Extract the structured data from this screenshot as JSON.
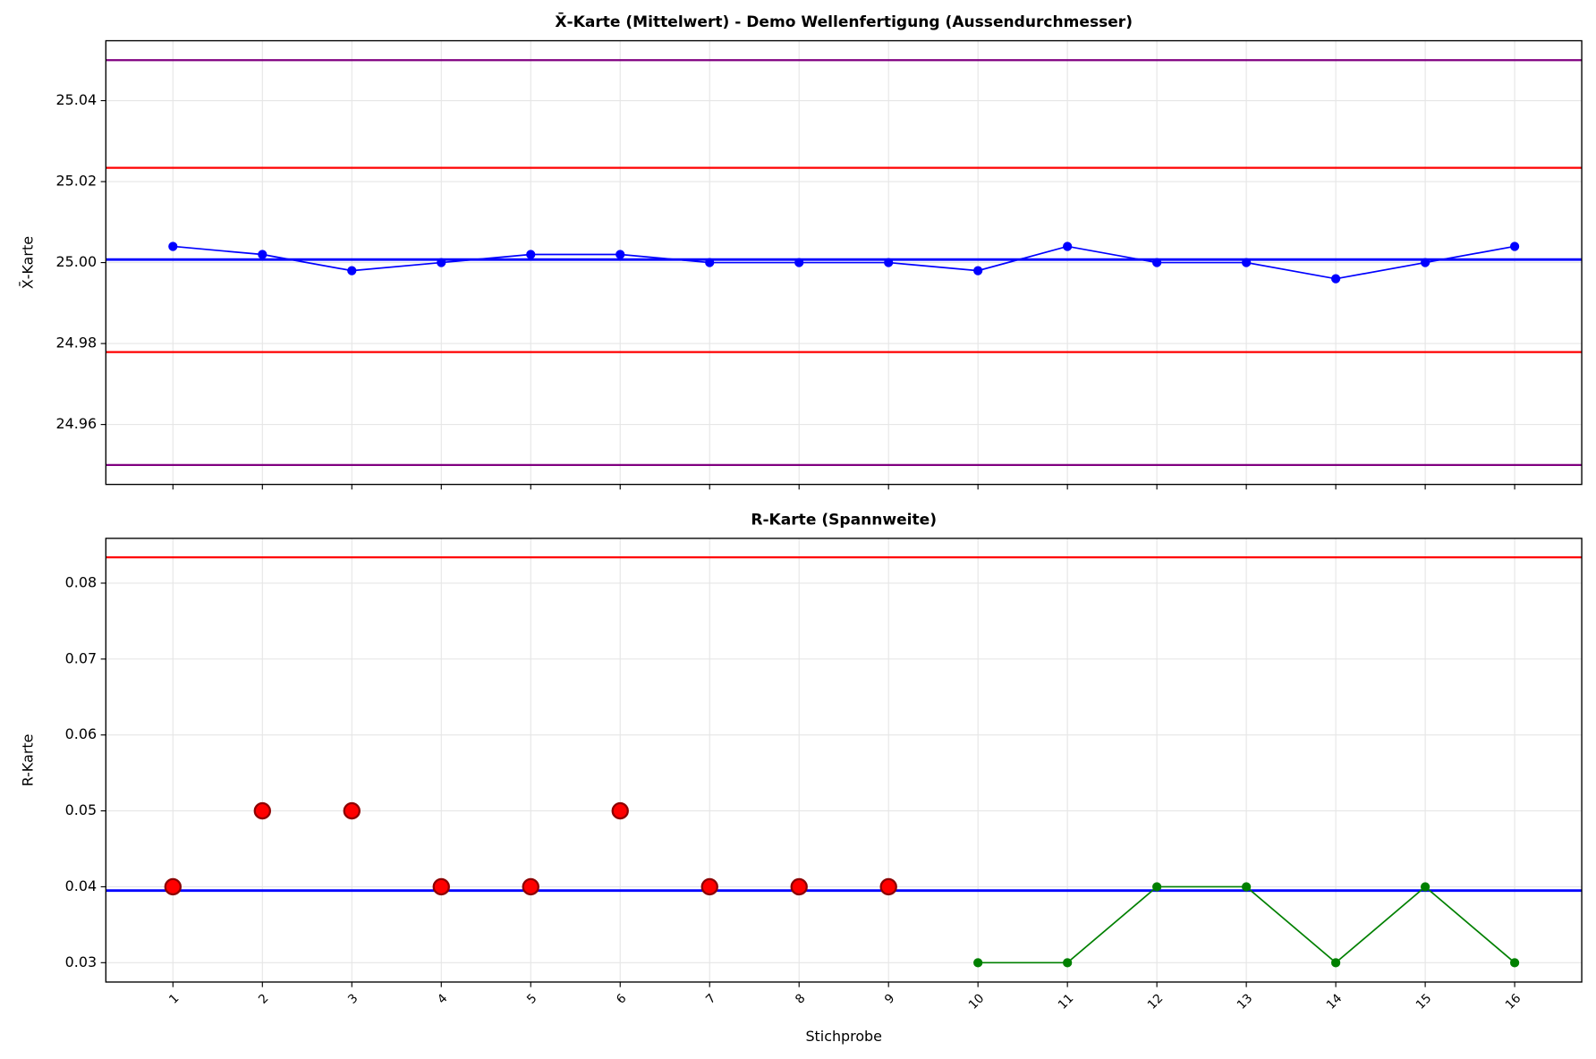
{
  "chart_data": [
    {
      "type": "line",
      "title": "X̄-Karte (Mittelwert) - Demo Wellenfertigung (Aussendurchmesser)",
      "y_label": "X̄-Karte",
      "x": [
        1,
        2,
        3,
        4,
        5,
        6,
        7,
        8,
        9,
        10,
        11,
        12,
        13,
        14,
        15,
        16
      ],
      "xlim": [
        0.25,
        16.75
      ],
      "xticks": [
        1,
        2,
        3,
        4,
        5,
        6,
        7,
        8,
        9,
        10,
        11,
        12,
        13,
        14,
        15,
        16
      ],
      "show_xtick_labels": false,
      "ylim": [
        24.9452,
        25.0548
      ],
      "yticks": [
        24.96,
        24.98,
        {
          "value": 25,
          "label": "25.00"
        },
        25.02,
        25.04
      ],
      "grid": true,
      "hlines": [
        {
          "value": 25.05,
          "color": "#800080"
        },
        {
          "value": 24.95,
          "color": "#800080"
        },
        {
          "value": 25.0234,
          "color": "#ff0000"
        },
        {
          "value": 24.9779,
          "color": "#ff0000"
        },
        {
          "value": 25.00075,
          "color": "#0000ff"
        }
      ],
      "series": [
        {
          "color": "#0000ff",
          "line": true,
          "marker": "small",
          "values": [
            25.004,
            25.002,
            24.998,
            25.0,
            25.002,
            25.002,
            25.0,
            25.0,
            25.0,
            24.998,
            25.004,
            25.0,
            25.0,
            24.996,
            25.0,
            25.004
          ]
        }
      ]
    },
    {
      "type": "line",
      "title": "R-Karte (Spannweite)",
      "y_label": "R-Karte",
      "x_label": "Stichprobe",
      "x": [
        1,
        2,
        3,
        4,
        5,
        6,
        7,
        8,
        9,
        10,
        11,
        12,
        13,
        14,
        15,
        16
      ],
      "xlim": [
        0.25,
        16.75
      ],
      "xticks": [
        1,
        2,
        3,
        4,
        5,
        6,
        7,
        8,
        9,
        10,
        11,
        12,
        13,
        14,
        15,
        16
      ],
      "show_xtick_labels": true,
      "ylim": [
        0.02745,
        0.0859
      ],
      "yticks": [
        0.03,
        0.04,
        0.05,
        0.06,
        0.07,
        0.08
      ],
      "grid": true,
      "hlines": [
        {
          "value": 0.0834,
          "color": "#ff0000"
        },
        {
          "value": 0.0395,
          "color": "#0000ff"
        }
      ],
      "series": [
        {
          "color": "#ff0000",
          "line": false,
          "marker": "large",
          "values": [
            0.04,
            0.05,
            0.05,
            0.04,
            0.04,
            0.05,
            0.04,
            0.04,
            0.04,
            null,
            null,
            null,
            null,
            null,
            null,
            null
          ]
        },
        {
          "color": "#008000",
          "line": true,
          "marker": "small",
          "values": [
            null,
            null,
            null,
            null,
            null,
            null,
            null,
            null,
            null,
            0.03,
            0.03,
            0.04,
            0.04,
            0.03,
            0.04,
            0.03
          ]
        }
      ]
    }
  ]
}
